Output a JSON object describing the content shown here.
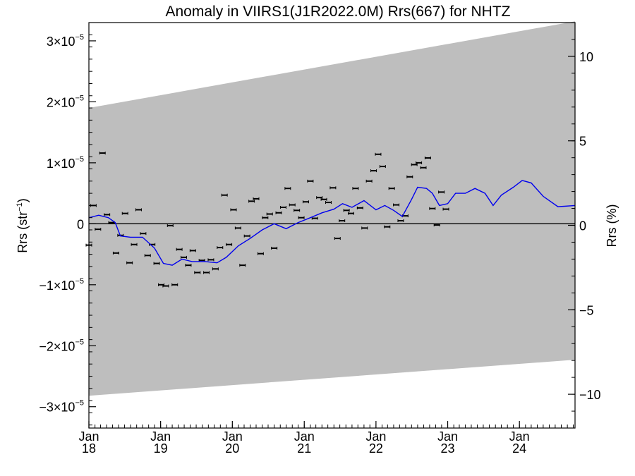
{
  "chart_data": {
    "type": "scatter",
    "title": "Anomaly in VIIRS1(J1R2022.0M) Rrs(667) for NHTZ",
    "ylabel_left_main": "Rrs (str",
    "ylabel_left_sup": "−1",
    "ylabel_left_close": ")",
    "ylabel_right": "Rrs (%)",
    "x_range": [
      "2018-01-01",
      "2024-10-10"
    ],
    "ylim_left": [
      -3.35e-05,
      3.3e-05
    ],
    "ylim_right": [
      -12,
      12
    ],
    "left_ticks": [
      {
        "value": -3e-05,
        "mant": "−3×10",
        "exp": "−5"
      },
      {
        "value": -2e-05,
        "mant": "−2×10",
        "exp": "−5"
      },
      {
        "value": -1e-05,
        "mant": "−1×10",
        "exp": "−5"
      },
      {
        "value": 0,
        "mant": "0",
        "exp": ""
      },
      {
        "value": 1e-05,
        "mant": "1×10",
        "exp": "−5"
      },
      {
        "value": 2e-05,
        "mant": "2×10",
        "exp": "−5"
      },
      {
        "value": 3e-05,
        "mant": "3×10",
        "exp": "−5"
      }
    ],
    "right_ticks": [
      {
        "value": -10,
        "label": "−10"
      },
      {
        "value": -5,
        "label": "−5"
      },
      {
        "value": 0,
        "label": "0"
      },
      {
        "value": 5,
        "label": "5"
      },
      {
        "value": 10,
        "label": "10"
      }
    ],
    "x_ticks": [
      {
        "date": "2018-01-01",
        "month": "Jan",
        "year": "18"
      },
      {
        "date": "2019-01-01",
        "month": "Jan",
        "year": "19"
      },
      {
        "date": "2020-01-01",
        "month": "Jan",
        "year": "20"
      },
      {
        "date": "2021-01-01",
        "month": "Jan",
        "year": "21"
      },
      {
        "date": "2022-01-01",
        "month": "Jan",
        "year": "22"
      },
      {
        "date": "2023-01-01",
        "month": "Jan",
        "year": "23"
      },
      {
        "date": "2024-01-01",
        "month": "Jan",
        "year": "24"
      }
    ],
    "uncertainty_band": {
      "color": "#bebebe",
      "start": {
        "date": "2018-01-01",
        "lower": -2.82e-05,
        "upper": 1.9e-05
      },
      "end": {
        "date": "2024-10-10",
        "lower": -2.23e-05,
        "upper": 3.32e-05
      }
    },
    "zero_line": true,
    "points_color": "#000000",
    "line_color": "#0000ee",
    "points": [
      {
        "date": "2018-01-01",
        "value": -3.5e-06
      },
      {
        "date": "2018-01-24",
        "value": 3e-06
      },
      {
        "date": "2018-02-16",
        "value": -9e-07
      },
      {
        "date": "2018-03-11",
        "value": 1.16e-05
      },
      {
        "date": "2018-04-03",
        "value": 1.5e-06
      },
      {
        "date": "2018-04-26",
        "value": 2e-07
      },
      {
        "date": "2018-05-19",
        "value": -4.8e-06
      },
      {
        "date": "2018-06-11",
        "value": -1.9e-06
      },
      {
        "date": "2018-07-04",
        "value": 1.7e-06
      },
      {
        "date": "2018-07-27",
        "value": -6.4e-06
      },
      {
        "date": "2018-08-19",
        "value": -3.4e-06
      },
      {
        "date": "2018-09-11",
        "value": 2.3e-06
      },
      {
        "date": "2018-10-04",
        "value": -1.6e-06
      },
      {
        "date": "2018-10-27",
        "value": -5.2e-06
      },
      {
        "date": "2018-11-19",
        "value": -3.4e-06
      },
      {
        "date": "2018-12-12",
        "value": -6.5e-06
      },
      {
        "date": "2019-01-04",
        "value": -1e-05
      },
      {
        "date": "2019-01-27",
        "value": -1.02e-05
      },
      {
        "date": "2019-02-19",
        "value": -3e-07
      },
      {
        "date": "2019-03-14",
        "value": -1e-05
      },
      {
        "date": "2019-04-06",
        "value": -4.2e-06
      },
      {
        "date": "2019-04-29",
        "value": -5.5e-06
      },
      {
        "date": "2019-05-22",
        "value": -6.8e-06
      },
      {
        "date": "2019-06-14",
        "value": -4.4e-06
      },
      {
        "date": "2019-07-07",
        "value": -8e-06
      },
      {
        "date": "2019-07-30",
        "value": -6e-06
      },
      {
        "date": "2019-08-22",
        "value": -8e-06
      },
      {
        "date": "2019-09-14",
        "value": -5.9e-06
      },
      {
        "date": "2019-10-07",
        "value": -7.4e-06
      },
      {
        "date": "2019-10-30",
        "value": -3.9e-06
      },
      {
        "date": "2019-11-22",
        "value": 4.7e-06
      },
      {
        "date": "2019-12-15",
        "value": -3.4e-06
      },
      {
        "date": "2020-01-07",
        "value": 2.3e-06
      },
      {
        "date": "2020-01-30",
        "value": -7e-07
      },
      {
        "date": "2020-02-22",
        "value": -6.8e-06
      },
      {
        "date": "2020-03-16",
        "value": -2e-06
      },
      {
        "date": "2020-04-08",
        "value": 3.7e-06
      },
      {
        "date": "2020-05-01",
        "value": 4.1e-06
      },
      {
        "date": "2020-05-24",
        "value": -4.9e-06
      },
      {
        "date": "2020-06-16",
        "value": 1e-06
      },
      {
        "date": "2020-07-09",
        "value": 1.6e-06
      },
      {
        "date": "2020-08-01",
        "value": -4e-06
      },
      {
        "date": "2020-08-24",
        "value": 1.8e-06
      },
      {
        "date": "2020-09-16",
        "value": 2.7e-06
      },
      {
        "date": "2020-10-09",
        "value": 5.8e-06
      },
      {
        "date": "2020-11-01",
        "value": 3.1e-06
      },
      {
        "date": "2020-11-24",
        "value": 2.2e-06
      },
      {
        "date": "2020-12-17",
        "value": 1e-06
      },
      {
        "date": "2021-01-09",
        "value": 3.6e-06
      },
      {
        "date": "2021-02-01",
        "value": 7e-06
      },
      {
        "date": "2021-02-24",
        "value": 9e-07
      },
      {
        "date": "2021-03-19",
        "value": 4.3e-06
      },
      {
        "date": "2021-04-11",
        "value": 4e-06
      },
      {
        "date": "2021-05-04",
        "value": 3.5e-06
      },
      {
        "date": "2021-05-27",
        "value": 5.9e-06
      },
      {
        "date": "2021-06-19",
        "value": -2.4e-06
      },
      {
        "date": "2021-07-12",
        "value": 5e-07
      },
      {
        "date": "2021-08-04",
        "value": 2.2e-06
      },
      {
        "date": "2021-08-27",
        "value": 1.7e-06
      },
      {
        "date": "2021-09-19",
        "value": 5.8e-06
      },
      {
        "date": "2021-10-12",
        "value": 2.6e-06
      },
      {
        "date": "2021-11-04",
        "value": -7e-07
      },
      {
        "date": "2021-11-27",
        "value": 7e-06
      },
      {
        "date": "2021-12-20",
        "value": 8.7e-06
      },
      {
        "date": "2022-01-12",
        "value": 1.14e-05
      },
      {
        "date": "2022-02-04",
        "value": 9.4e-06
      },
      {
        "date": "2022-02-27",
        "value": -5e-07
      },
      {
        "date": "2022-03-22",
        "value": 5.8e-06
      },
      {
        "date": "2022-04-14",
        "value": 3.1e-06
      },
      {
        "date": "2022-05-07",
        "value": 5e-07
      },
      {
        "date": "2022-05-30",
        "value": 1.3e-06
      },
      {
        "date": "2022-06-22",
        "value": 7.7e-06
      },
      {
        "date": "2022-07-15",
        "value": 9.7e-06
      },
      {
        "date": "2022-08-07",
        "value": 1e-05
      },
      {
        "date": "2022-08-30",
        "value": 9.2e-06
      },
      {
        "date": "2022-09-22",
        "value": 1.08e-05
      },
      {
        "date": "2022-10-15",
        "value": 2.5e-06
      },
      {
        "date": "2022-11-07",
        "value": -2e-07
      },
      {
        "date": "2022-11-30",
        "value": 5.2e-06
      },
      {
        "date": "2022-12-23",
        "value": 2.4e-06
      }
    ],
    "trend_line": [
      {
        "date": "2018-01-01",
        "value": 1e-06
      },
      {
        "date": "2018-02-20",
        "value": 1.4e-06
      },
      {
        "date": "2018-04-10",
        "value": 1e-06
      },
      {
        "date": "2018-05-15",
        "value": 2e-07
      },
      {
        "date": "2018-06-10",
        "value": -2e-06
      },
      {
        "date": "2018-08-01",
        "value": -2.2e-06
      },
      {
        "date": "2018-10-01",
        "value": -2.2e-06
      },
      {
        "date": "2018-12-01",
        "value": -4e-06
      },
      {
        "date": "2019-01-15",
        "value": -6.5e-06
      },
      {
        "date": "2019-03-01",
        "value": -6.8e-06
      },
      {
        "date": "2019-04-20",
        "value": -5.8e-06
      },
      {
        "date": "2019-06-10",
        "value": -6.2e-06
      },
      {
        "date": "2019-08-15",
        "value": -6.2e-06
      },
      {
        "date": "2019-10-15",
        "value": -6.4e-06
      },
      {
        "date": "2019-12-01",
        "value": -5.5e-06
      },
      {
        "date": "2020-02-01",
        "value": -3.6e-06
      },
      {
        "date": "2020-04-01",
        "value": -2.4e-06
      },
      {
        "date": "2020-06-01",
        "value": -1e-06
      },
      {
        "date": "2020-08-01",
        "value": 0.0
      },
      {
        "date": "2020-10-01",
        "value": -8e-07
      },
      {
        "date": "2020-12-01",
        "value": 2e-07
      },
      {
        "date": "2021-02-01",
        "value": 1e-06
      },
      {
        "date": "2021-04-01",
        "value": 1.8e-06
      },
      {
        "date": "2021-06-01",
        "value": 2.4e-06
      },
      {
        "date": "2021-07-15",
        "value": 3.3e-06
      },
      {
        "date": "2021-09-01",
        "value": 2.7e-06
      },
      {
        "date": "2021-11-01",
        "value": 3.8e-06
      },
      {
        "date": "2022-01-01",
        "value": 2.3e-06
      },
      {
        "date": "2022-02-15",
        "value": 3e-06
      },
      {
        "date": "2022-04-01",
        "value": 2.2e-06
      },
      {
        "date": "2022-05-15",
        "value": 1.2e-06
      },
      {
        "date": "2022-07-01",
        "value": 4e-06
      },
      {
        "date": "2022-08-01",
        "value": 6e-06
      },
      {
        "date": "2022-09-15",
        "value": 5.8e-06
      },
      {
        "date": "2022-10-15",
        "value": 5e-06
      },
      {
        "date": "2022-11-20",
        "value": 3e-06
      },
      {
        "date": "2023-01-01",
        "value": 3.3e-06
      },
      {
        "date": "2023-02-10",
        "value": 5e-06
      },
      {
        "date": "2023-04-01",
        "value": 5e-06
      },
      {
        "date": "2023-05-20",
        "value": 5.8e-06
      },
      {
        "date": "2023-07-10",
        "value": 5e-06
      },
      {
        "date": "2023-08-20",
        "value": 3e-06
      },
      {
        "date": "2023-10-01",
        "value": 4.7e-06
      },
      {
        "date": "2023-12-01",
        "value": 6e-06
      },
      {
        "date": "2024-01-15",
        "value": 7.1e-06
      },
      {
        "date": "2024-03-01",
        "value": 6.7e-06
      },
      {
        "date": "2024-05-01",
        "value": 4.5e-06
      },
      {
        "date": "2024-07-15",
        "value": 2.8e-06
      },
      {
        "date": "2024-10-10",
        "value": 3e-06
      }
    ]
  }
}
